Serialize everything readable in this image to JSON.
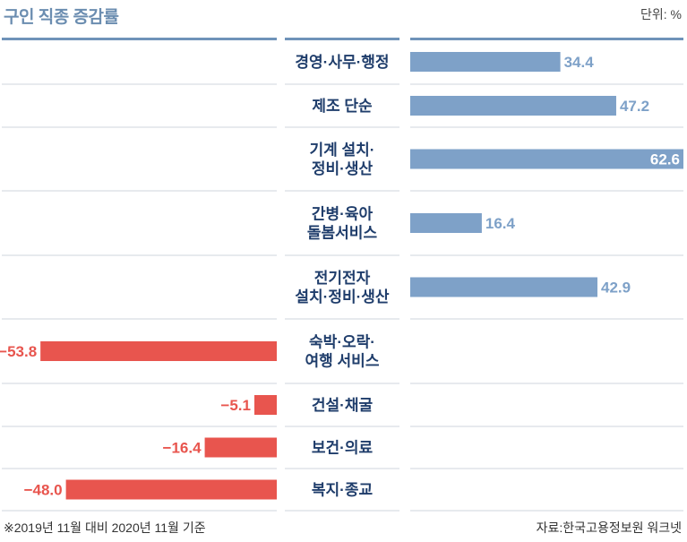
{
  "header": {
    "title": "구인 직종 증감률",
    "unit": "단위: %"
  },
  "footer": {
    "note": "※2019년 11월 대비 2020년 11월 기준",
    "source": "자료:한국고용정보원 워크넷"
  },
  "colors": {
    "positive": "#7ea1c8",
    "negative": "#e8554e",
    "rule": "#6f93b9",
    "divider": "#cfd6de",
    "label": "#1f3d6b"
  },
  "chart_data": {
    "type": "bar",
    "orientation": "horizontal-diverging",
    "categories": [
      [
        "경영·사무·행정"
      ],
      [
        "제조 단순"
      ],
      [
        "기계 설치·",
        "정비·생산"
      ],
      [
        "간병·육아",
        "돌봄서비스"
      ],
      [
        "전기전자",
        "설치·정비·생산"
      ],
      [
        "숙박·오락·",
        "여행 서비스"
      ],
      [
        "건설·채굴"
      ],
      [
        "보건·의료"
      ],
      [
        "복지·종교"
      ]
    ],
    "values": [
      34.4,
      47.2,
      62.6,
      16.4,
      42.9,
      -53.8,
      -5.1,
      -16.4,
      -48.0
    ],
    "value_labels": [
      "34.4",
      "47.2",
      "62.6",
      "16.4",
      "42.9",
      "−53.8",
      "−5.1",
      "−16.4",
      "−48.0"
    ],
    "xlim": [
      -62.6,
      62.6
    ]
  }
}
